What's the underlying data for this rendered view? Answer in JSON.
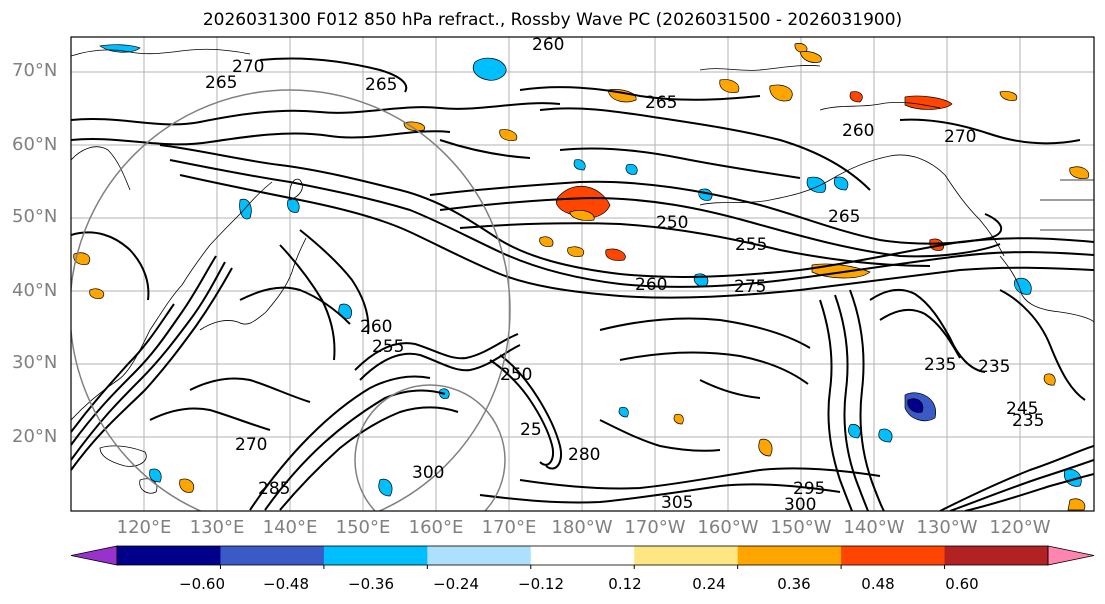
{
  "title": "2026031300 F012 850 hPa refract., Rossby Wave PC (2026031500 - 2026031900)",
  "map": {
    "projection": "cylindrical",
    "region": "North Pacific",
    "lat_labels": [
      "70°N",
      "60°N",
      "50°N",
      "40°N",
      "30°N",
      "20°N"
    ],
    "lon_labels": [
      "120°E",
      "130°E",
      "140°E",
      "150°E",
      "160°E",
      "170°E",
      "180°W",
      "170°W",
      "160°W",
      "150°W",
      "140°W",
      "130°W",
      "120°W"
    ],
    "contour_labels": [
      "270",
      "265",
      "260",
      "265",
      "260",
      "270",
      "265",
      "250",
      "255",
      "260",
      "275",
      "260",
      "255",
      "250",
      "235",
      "235",
      "245",
      "235",
      "270",
      "280",
      "300",
      "305",
      "295",
      "300",
      "285",
      "265",
      "25"
    ]
  },
  "colorbar": {
    "ticks": [
      "−0.60",
      "−0.48",
      "−0.36",
      "−0.24",
      "−0.12",
      "0.12",
      "0.24",
      "0.36",
      "0.48",
      "0.60"
    ],
    "colors": [
      "#9932CC",
      "#00008B",
      "#3A5BC7",
      "#00BFFF",
      "#ADDFFF",
      "#FFFFFF",
      "#FFE680",
      "#FFA500",
      "#FF4500",
      "#B22222",
      "#FF85B0"
    ]
  }
}
